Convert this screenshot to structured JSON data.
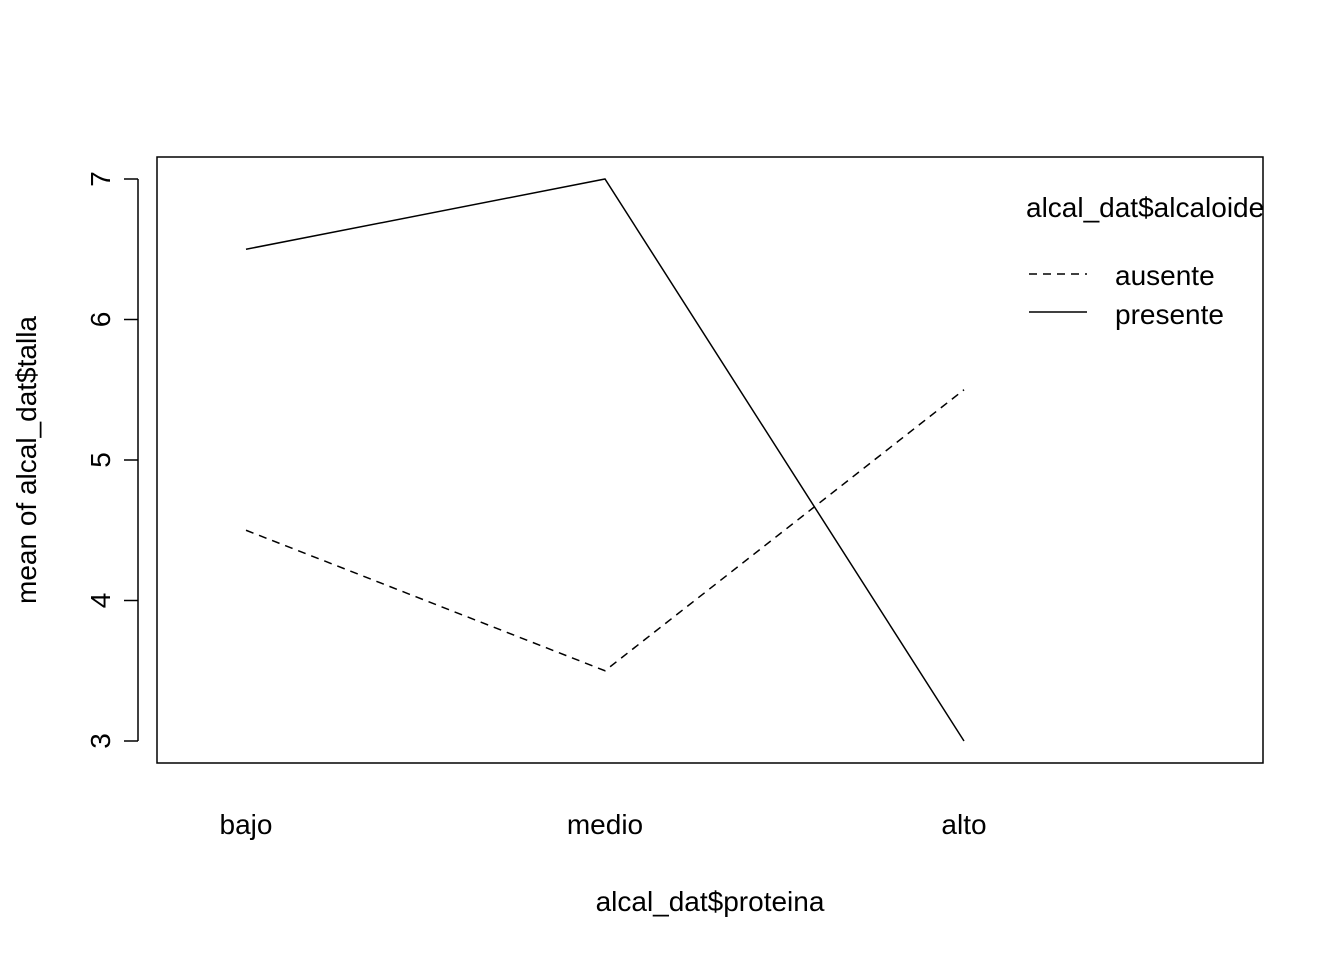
{
  "chart_data": {
    "type": "line",
    "title": "",
    "xlabel": "alcal_dat$proteina",
    "ylabel": "mean of  alcal_dat$talla",
    "categories": [
      "bajo",
      "medio",
      "alto"
    ],
    "ylim": [
      3,
      7
    ],
    "yticks": [
      "3",
      "4",
      "5",
      "6",
      "7"
    ],
    "legend_title": "alcal_dat$alcaloide",
    "legend_position": "top-right",
    "grid": false,
    "series": [
      {
        "name": "ausente",
        "values": [
          4.5,
          3.5,
          5.5
        ],
        "line_style": "dashed",
        "color": "#000000"
      },
      {
        "name": "presente",
        "values": [
          6.5,
          7.0,
          3.0
        ],
        "line_style": "solid",
        "color": "#000000"
      }
    ]
  }
}
